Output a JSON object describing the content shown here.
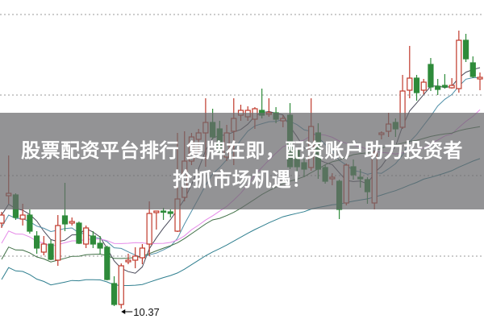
{
  "headline": {
    "line1": "股票配资平台排行 复牌在即，配资账户助力投资者",
    "line2": "抢抓市场机遇！"
  },
  "chart_data": {
    "type": "candlestick",
    "title": "",
    "xlabel": "",
    "ylabel": "",
    "grid": "horizontal dotted",
    "ylim": [
      10.2,
      14.2
    ],
    "annotations": [
      {
        "text": "10.37",
        "candle_index": 17,
        "meaning": "low point marker"
      }
    ],
    "colors": {
      "up": "#c0392b",
      "down": "#2e8b3a",
      "ma": [
        "#4a4a5a",
        "#4f8fa8",
        "#e58ae8",
        "#3f6f45",
        "#2f7f8f"
      ]
    },
    "moving_averages": [
      5,
      10,
      20,
      30,
      60
    ],
    "candles": [
      [
        11.43,
        11.57,
        11.37,
        11.53
      ],
      [
        11.77,
        12.27,
        11.67,
        11.8
      ],
      [
        11.78,
        11.8,
        11.47,
        11.5
      ],
      [
        11.48,
        11.67,
        11.4,
        11.53
      ],
      [
        11.53,
        11.6,
        11.3,
        11.33
      ],
      [
        11.27,
        11.33,
        11.05,
        11.12
      ],
      [
        11.07,
        11.27,
        11.03,
        11.17
      ],
      [
        11.17,
        11.22,
        10.97,
        10.98
      ],
      [
        10.97,
        11.53,
        10.9,
        11.4
      ],
      [
        11.52,
        11.93,
        11.33,
        11.42
      ],
      [
        11.43,
        11.5,
        11.4,
        11.45
      ],
      [
        11.43,
        11.45,
        11.17,
        11.18
      ],
      [
        11.17,
        11.4,
        11.12,
        11.37
      ],
      [
        11.27,
        11.33,
        11.12,
        11.17
      ],
      [
        11.18,
        11.27,
        11.05,
        11.12
      ],
      [
        11.13,
        11.15,
        10.72,
        10.73
      ],
      [
        10.68,
        10.77,
        10.4,
        10.42
      ],
      [
        10.42,
        10.93,
        10.37,
        10.9
      ],
      [
        10.95,
        11.05,
        10.92,
        10.97
      ],
      [
        10.97,
        11.13,
        10.87,
        11.02
      ],
      [
        11.0,
        11.17,
        10.92,
        11.12
      ],
      [
        11.17,
        11.7,
        11.02,
        11.55
      ],
      [
        11.56,
        11.58,
        11.35,
        11.58
      ],
      [
        11.58,
        11.62,
        11.47,
        11.57
      ],
      [
        11.57,
        11.6,
        11.5,
        11.55
      ],
      [
        11.33,
        12.55,
        11.32,
        11.73
      ],
      [
        11.75,
        12.57,
        11.7,
        12.2
      ],
      [
        12.2,
        12.55,
        12.15,
        12.5
      ],
      [
        12.47,
        12.6,
        12.3,
        12.55
      ],
      [
        12.55,
        12.98,
        12.13,
        12.68
      ],
      [
        12.68,
        12.85,
        12.47,
        12.5
      ],
      [
        12.6,
        12.7,
        12.3,
        12.35
      ],
      [
        12.25,
        12.65,
        12.2,
        12.55
      ],
      [
        12.57,
        12.98,
        12.15,
        12.73
      ],
      [
        12.77,
        12.9,
        12.7,
        12.83
      ],
      [
        12.75,
        12.88,
        12.7,
        12.83
      ],
      [
        12.72,
        12.87,
        12.6,
        12.85
      ],
      [
        12.83,
        13.1,
        12.73,
        12.77
      ],
      [
        12.78,
        12.98,
        12.75,
        12.8
      ],
      [
        12.8,
        12.87,
        12.67,
        12.72
      ],
      [
        12.7,
        12.77,
        12.62,
        12.73
      ],
      [
        12.77,
        12.92,
        12.1,
        12.13
      ],
      [
        12.33,
        12.37,
        12.07,
        12.13
      ],
      [
        12.18,
        12.23,
        12.0,
        12.1
      ],
      [
        12.12,
        12.98,
        12.08,
        12.63
      ],
      [
        12.55,
        12.67,
        11.98,
        12.1
      ],
      [
        12.12,
        12.15,
        11.92,
        11.95
      ],
      [
        11.98,
        12.05,
        11.9,
        12.0
      ],
      [
        11.95,
        11.97,
        11.48,
        11.6
      ],
      [
        11.68,
        12.17,
        11.65,
        12.15
      ],
      [
        12.13,
        12.22,
        11.97,
        12.03
      ],
      [
        12.0,
        12.1,
        11.87,
        11.98
      ],
      [
        11.97,
        12.0,
        11.67,
        11.82
      ],
      [
        11.68,
        12.33,
        11.6,
        12.3
      ],
      [
        12.53,
        12.57,
        12.47,
        12.55
      ],
      [
        12.57,
        12.8,
        12.5,
        12.66
      ],
      [
        12.68,
        12.73,
        12.5,
        12.6
      ],
      [
        12.62,
        13.27,
        12.6,
        13.07
      ],
      [
        13.08,
        13.63,
        12.98,
        13.23
      ],
      [
        13.23,
        13.27,
        12.95,
        13.05
      ],
      [
        13.08,
        13.22,
        13.03,
        13.18
      ],
      [
        13.4,
        13.48,
        13.07,
        13.12
      ],
      [
        13.13,
        13.22,
        13.02,
        13.09
      ],
      [
        13.14,
        13.28,
        13.1,
        13.12
      ],
      [
        13.11,
        13.23,
        13.1,
        13.14
      ],
      [
        13.1,
        13.82,
        13.05,
        13.7
      ],
      [
        13.7,
        13.78,
        13.43,
        13.47
      ],
      [
        13.42,
        13.5,
        13.23,
        13.25
      ],
      [
        13.22,
        13.3,
        13.08,
        13.24
      ]
    ]
  }
}
